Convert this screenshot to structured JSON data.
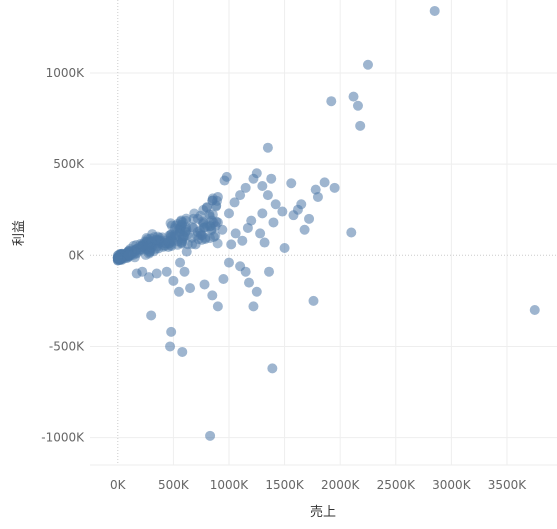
{
  "colors": {
    "point": "#4e79a7",
    "grid": "#eeeeee",
    "zero_line": "#cccccc",
    "text": "#666666"
  },
  "chart_data": {
    "type": "scatter",
    "xlabel": "売上",
    "ylabel": "利益",
    "x_unit_suffix": "K",
    "y_unit_suffix": "K",
    "xlim": [
      -250,
      3950
    ],
    "ylim": [
      -1150,
      1400
    ],
    "x_ticks": [
      0,
      500,
      1000,
      1500,
      2000,
      2500,
      3000,
      3500
    ],
    "x_tick_labels": [
      "0K",
      "500K",
      "1000K",
      "1500K",
      "2000K",
      "2500K",
      "3000K",
      "3500K"
    ],
    "y_ticks": [
      -1000,
      -500,
      0,
      500,
      1000
    ],
    "y_tick_labels": [
      "-1000K",
      "-500K",
      "0K",
      "500K",
      "1000K"
    ],
    "grid": true,
    "points": [
      [
        2850,
        1340
      ],
      [
        2250,
        1045
      ],
      [
        1920,
        845
      ],
      [
        2120,
        870
      ],
      [
        2160,
        820
      ],
      [
        2180,
        710
      ],
      [
        1350,
        590
      ],
      [
        1860,
        400
      ],
      [
        1950,
        370
      ],
      [
        2100,
        125
      ],
      [
        1780,
        360
      ],
      [
        1800,
        320
      ],
      [
        1560,
        395
      ],
      [
        1650,
        280
      ],
      [
        1620,
        250
      ],
      [
        1580,
        220
      ],
      [
        1720,
        200
      ],
      [
        1680,
        140
      ],
      [
        1420,
        280
      ],
      [
        1480,
        240
      ],
      [
        1350,
        330
      ],
      [
        1300,
        380
      ],
      [
        1380,
        420
      ],
      [
        1250,
        450
      ],
      [
        1220,
        420
      ],
      [
        1150,
        370
      ],
      [
        1100,
        330
      ],
      [
        1050,
        290
      ],
      [
        980,
        430
      ],
      [
        960,
        410
      ],
      [
        900,
        320
      ],
      [
        850,
        300
      ],
      [
        800,
        260
      ],
      [
        1000,
        230
      ],
      [
        1200,
        190
      ],
      [
        1300,
        230
      ],
      [
        1400,
        180
      ],
      [
        1500,
        40
      ],
      [
        1360,
        -90
      ],
      [
        1250,
        -200
      ],
      [
        1220,
        -280
      ],
      [
        1180,
        -150
      ],
      [
        1150,
        -90
      ],
      [
        1100,
        -60
      ],
      [
        1000,
        -40
      ],
      [
        950,
        -130
      ],
      [
        900,
        -280
      ],
      [
        850,
        -220
      ],
      [
        780,
        -160
      ],
      [
        650,
        -180
      ],
      [
        550,
        -200
      ],
      [
        600,
        -90
      ],
      [
        500,
        -140
      ],
      [
        440,
        -90
      ],
      [
        350,
        -100
      ],
      [
        280,
        -120
      ],
      [
        220,
        -90
      ],
      [
        170,
        -100
      ],
      [
        300,
        -330
      ],
      [
        480,
        -420
      ],
      [
        470,
        -500
      ],
      [
        580,
        -530
      ],
      [
        1390,
        -620
      ],
      [
        830,
        -990
      ],
      [
        1760,
        -250
      ],
      [
        3750,
        -300
      ],
      [
        700,
        60
      ],
      [
        750,
        110
      ],
      [
        620,
        20
      ],
      [
        560,
        -40
      ],
      [
        1020,
        60
      ],
      [
        1060,
        120
      ],
      [
        1120,
        80
      ],
      [
        1170,
        150
      ],
      [
        1280,
        120
      ],
      [
        1320,
        70
      ],
      [
        720,
        200
      ],
      [
        680,
        150
      ],
      [
        900,
        180
      ],
      [
        940,
        140
      ]
    ]
  }
}
